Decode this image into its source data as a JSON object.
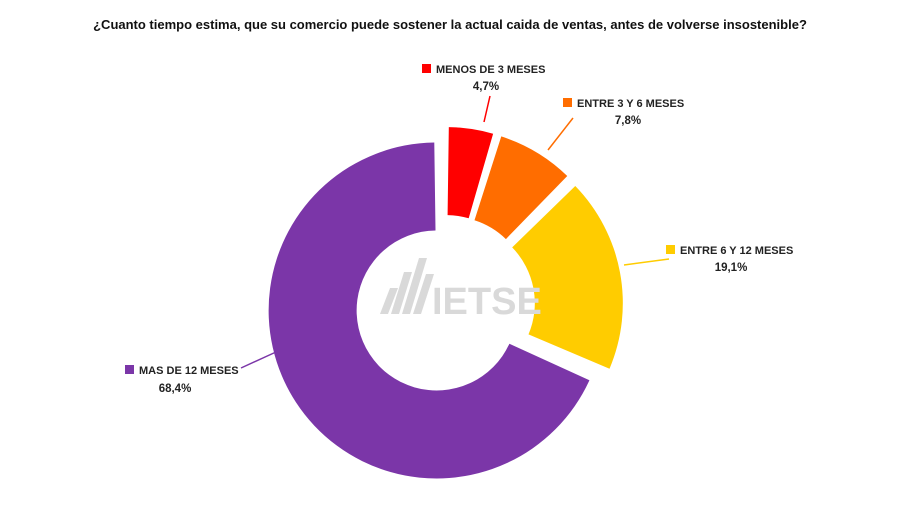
{
  "chart_data": {
    "type": "donut",
    "title": "¿Cuanto tiempo estima, que su comercio puede sostener la actual caida de ventas, antes de volverse insostenible?",
    "unit": "%",
    "slices": [
      {
        "label": "MENOS DE 3 MESES",
        "value": 4.7,
        "value_label": "4,7%",
        "color": "#ff0000"
      },
      {
        "label": "ENTRE 3 Y 6 MESES",
        "value": 7.8,
        "value_label": "7,8%",
        "color": "#ff6d00"
      },
      {
        "label": "ENTRE 6 Y 12 MESES",
        "value": 19.1,
        "value_label": "19,1%",
        "color": "#ffcc00"
      },
      {
        "label": "MAS DE 12 MESES",
        "value": 68.4,
        "value_label": "68,4%",
        "color": "#7b36a8"
      }
    ],
    "start_angle_deg": 0,
    "direction": "clockwise",
    "exploded": true,
    "legend": "none"
  },
  "watermark": {
    "text": "IETSE"
  }
}
